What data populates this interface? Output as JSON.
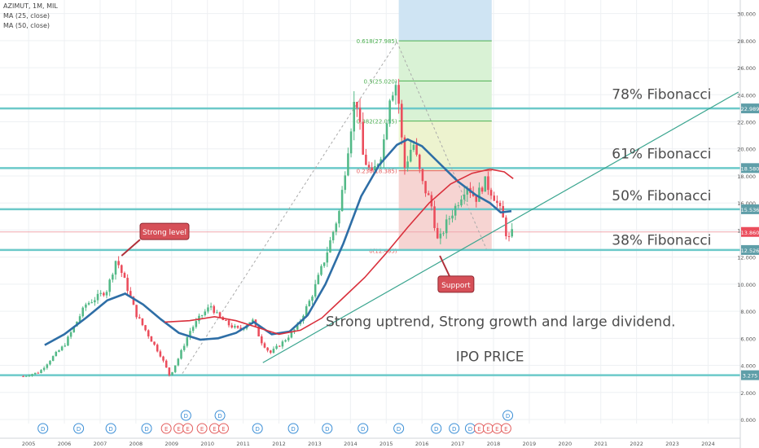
{
  "header": {
    "symbol": "AZIMUT, 1M, MIL",
    "ma1": "MA (25, close)",
    "ma2": "MA (50, close)"
  },
  "colors": {
    "up": "#53b987",
    "down": "#eb4d5c",
    "ma25": "#2e6ea6",
    "ma50": "#d9303c",
    "level": "#6cc9c9",
    "trendline": "#3aa58f",
    "fib_text": "#4d4d4d",
    "callout": "#d65058"
  },
  "chart_data": {
    "type": "candlestick",
    "xlim": [
      2004.2,
      2024.9
    ],
    "ylim": [
      -0.3,
      31.0
    ],
    "x_ticks": [
      2005,
      2006,
      2007,
      2008,
      2009,
      2010,
      2011,
      2012,
      2013,
      2014,
      2015,
      2016,
      2017,
      2018,
      2019,
      2020,
      2021,
      2022,
      2023,
      2024
    ],
    "y_ticks": [
      "0.000",
      "2.000",
      "4.000",
      "6.000",
      "8.000",
      "10.000",
      "12.000",
      "14.000",
      "16.000",
      "18.000",
      "20.000",
      "22.000",
      "24.000",
      "26.000",
      "28.000",
      "30.000"
    ],
    "price_anchors": [
      [
        2004.85,
        3.2
      ],
      [
        2005.3,
        3.5
      ],
      [
        2005.7,
        4.7
      ],
      [
        2006.0,
        5.5
      ],
      [
        2006.3,
        7.0
      ],
      [
        2006.6,
        8.5
      ],
      [
        2006.9,
        9.0
      ],
      [
        2007.2,
        9.6
      ],
      [
        2007.45,
        11.9
      ],
      [
        2007.75,
        9.8
      ],
      [
        2008.0,
        7.8
      ],
      [
        2008.4,
        6.0
      ],
      [
        2008.7,
        4.7
      ],
      [
        2008.95,
        3.2
      ],
      [
        2009.2,
        4.6
      ],
      [
        2009.5,
        6.5
      ],
      [
        2009.8,
        7.6
      ],
      [
        2010.1,
        8.4
      ],
      [
        2010.3,
        7.6
      ],
      [
        2010.6,
        7.0
      ],
      [
        2010.9,
        6.6
      ],
      [
        2011.25,
        7.4
      ],
      [
        2011.5,
        5.8
      ],
      [
        2011.75,
        4.9
      ],
      [
        2012.1,
        5.7
      ],
      [
        2012.5,
        6.8
      ],
      [
        2012.9,
        9.0
      ],
      [
        2013.3,
        12.0
      ],
      [
        2013.7,
        15.5
      ],
      [
        2013.95,
        20.5
      ],
      [
        2014.15,
        24.2
      ],
      [
        2014.35,
        19.5
      ],
      [
        2014.6,
        18.0
      ],
      [
        2014.9,
        20.0
      ],
      [
        2015.1,
        24.0
      ],
      [
        2015.3,
        25.0
      ],
      [
        2015.5,
        18.5
      ],
      [
        2015.75,
        20.5
      ],
      [
        2016.0,
        17.5
      ],
      [
        2016.25,
        16.0
      ],
      [
        2016.45,
        13.0
      ],
      [
        2016.7,
        14.6
      ],
      [
        2016.95,
        15.8
      ],
      [
        2017.25,
        17.4
      ],
      [
        2017.5,
        16.3
      ],
      [
        2017.75,
        17.6
      ],
      [
        2018.0,
        16.6
      ],
      [
        2018.25,
        15.0
      ],
      [
        2018.4,
        13.2
      ],
      [
        2018.55,
        13.9
      ]
    ],
    "series": [
      {
        "name": "MA (25, close)",
        "x": [
          2005.45,
          2006.0,
          2006.6,
          2007.2,
          2007.7,
          2008.2,
          2008.7,
          2009.2,
          2009.8,
          2010.3,
          2010.8,
          2011.3,
          2011.8,
          2012.3,
          2012.8,
          2013.3,
          2013.8,
          2014.3,
          2014.8,
          2015.3,
          2015.6,
          2016.0,
          2016.5,
          2017.0,
          2017.5,
          2017.9,
          2018.2,
          2018.5
        ],
        "values": [
          5.5,
          6.3,
          7.5,
          8.8,
          9.3,
          8.5,
          7.4,
          6.4,
          5.9,
          6.0,
          6.4,
          7.2,
          6.3,
          6.5,
          7.7,
          10.0,
          13.0,
          16.5,
          18.8,
          20.3,
          20.7,
          20.2,
          18.9,
          17.6,
          16.6,
          16.0,
          15.3,
          15.4
        ]
      },
      {
        "name": "MA (50, close)",
        "x": [
          2008.8,
          2009.5,
          2010.2,
          2010.8,
          2011.4,
          2012.0,
          2012.6,
          2013.2,
          2013.8,
          2014.4,
          2015.0,
          2015.6,
          2016.2,
          2016.8,
          2017.4,
          2017.9,
          2018.3,
          2018.55
        ],
        "values": [
          7.2,
          7.3,
          7.6,
          7.3,
          6.8,
          6.3,
          6.6,
          7.5,
          9.0,
          10.5,
          12.3,
          14.2,
          16.0,
          17.4,
          18.2,
          18.5,
          18.3,
          17.8
        ]
      }
    ],
    "levels": [
      {
        "value": 22.989,
        "label": "22.989"
      },
      {
        "value": 18.58,
        "label": "18.580"
      },
      {
        "value": 15.536,
        "label": "15.536"
      },
      {
        "value": 12.526,
        "label": "12.526"
      },
      {
        "value": 3.275,
        "label": "3.275"
      }
    ],
    "current_price": {
      "value": 13.86,
      "label": "13.860"
    },
    "fib_retracement": {
      "x0": 2015.35,
      "x1": 2017.95,
      "levels": [
        {
          "value": 27.985,
          "label": "0.618(27.985)"
        },
        {
          "value": 25.02,
          "label": "0.5(25.020)"
        },
        {
          "value": 22.055,
          "label": "0.382(22.055)"
        },
        {
          "value": 18.385,
          "label": "0.236(18.385)"
        },
        {
          "value": 12.495,
          "label": "0(12.495)"
        }
      ]
    },
    "fib_text_labels": [
      {
        "text": "78% Fibonacci",
        "y": 23.7
      },
      {
        "text": "61% Fibonacci",
        "y": 19.3
      },
      {
        "text": "50% Fibonacci",
        "y": 16.2
      },
      {
        "text": "38% Fibonacci",
        "y": 12.9
      }
    ],
    "annotations": [
      {
        "text": "Strong level",
        "x": 2008.8,
        "y": 13.9
      },
      {
        "text": "Support",
        "x": 2016.95,
        "y": 10.0
      },
      {
        "text": "Strong uptrend, Strong growth and large dividend.",
        "x": 2018.2,
        "y": 6.9
      },
      {
        "text": "IPO PRICE",
        "x": 2017.9,
        "y": 4.3
      }
    ],
    "event_markers": {
      "row1": [
        {
          "x": 2009.4,
          "t": "D"
        },
        {
          "x": 2010.35,
          "t": "D"
        },
        {
          "x": 2018.4,
          "t": "D"
        }
      ],
      "row2": [
        {
          "x": 2005.4,
          "t": "D"
        },
        {
          "x": 2006.4,
          "t": "D"
        },
        {
          "x": 2007.3,
          "t": "D"
        },
        {
          "x": 2008.3,
          "t": "D"
        },
        {
          "x": 2008.85,
          "t": "E"
        },
        {
          "x": 2009.2,
          "t": "E"
        },
        {
          "x": 2009.45,
          "t": "E"
        },
        {
          "x": 2009.85,
          "t": "E"
        },
        {
          "x": 2010.2,
          "t": "E"
        },
        {
          "x": 2010.45,
          "t": "E"
        },
        {
          "x": 2011.4,
          "t": "D"
        },
        {
          "x": 2012.4,
          "t": "D"
        },
        {
          "x": 2013.35,
          "t": "D"
        },
        {
          "x": 2014.35,
          "t": "D"
        },
        {
          "x": 2015.35,
          "t": "D"
        },
        {
          "x": 2016.4,
          "t": "D"
        },
        {
          "x": 2016.9,
          "t": "D"
        },
        {
          "x": 2017.35,
          "t": "D"
        },
        {
          "x": 2017.6,
          "t": "E"
        },
        {
          "x": 2017.85,
          "t": "E"
        },
        {
          "x": 2018.1,
          "t": "E"
        },
        {
          "x": 2018.35,
          "t": "E"
        }
      ]
    }
  }
}
